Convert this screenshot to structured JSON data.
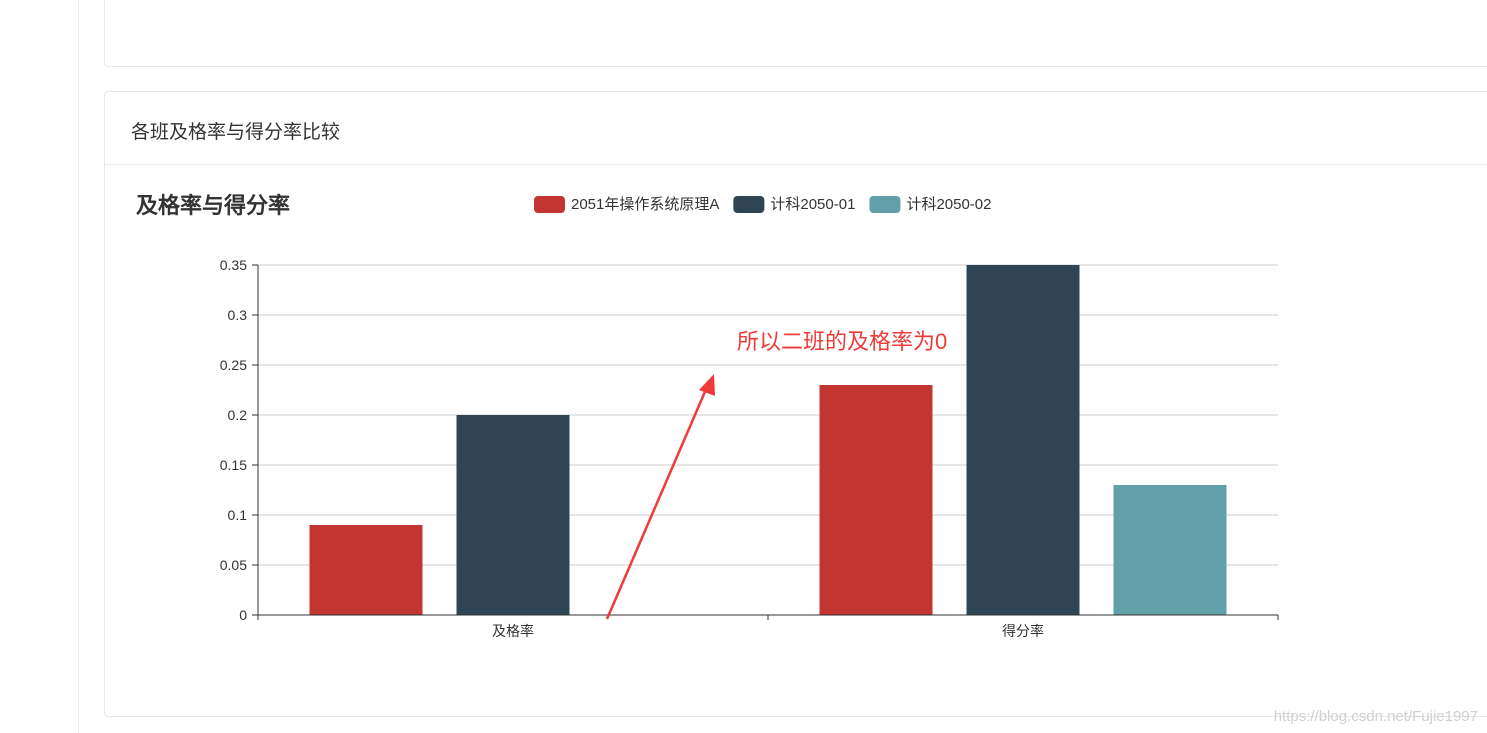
{
  "card": {
    "title": "各班及格率与得分率比较"
  },
  "chart_data": {
    "type": "bar",
    "title": "及格率与得分率",
    "categories": [
      "及格率",
      "得分率"
    ],
    "series": [
      {
        "name": "2051年操作系统原理A",
        "values": [
          0.09,
          0.23
        ],
        "color": "#c23531"
      },
      {
        "name": "计科2050-01",
        "values": [
          0.2,
          0.35
        ],
        "color": "#2f4554"
      },
      {
        "name": "计科2050-02",
        "values": [
          0,
          0.13
        ],
        "color": "#61a0a8"
      }
    ],
    "ylim": [
      0,
      0.35
    ],
    "yticks": [
      "0",
      "0.05",
      "0.1",
      "0.15",
      "0.2",
      "0.25",
      "0.3",
      "0.35"
    ],
    "grid": true,
    "legend_position": "top-center",
    "annotation": {
      "text": "所以二班的及格率为0",
      "color": "#f03a3a"
    }
  },
  "watermark": "https://blog.csdn.net/Fujie1997"
}
